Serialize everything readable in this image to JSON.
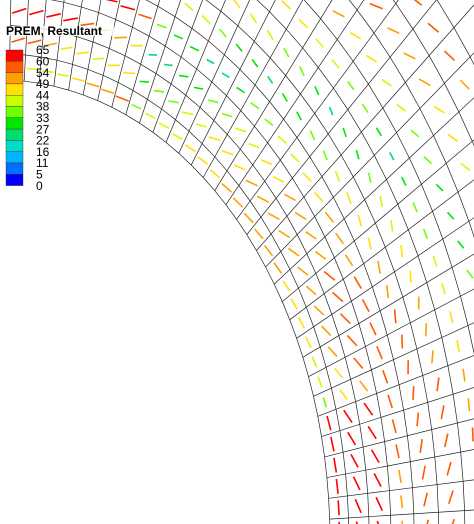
{
  "legend": {
    "title": "PREM, Resultant",
    "levels": [
      {
        "label": 65,
        "color": "#ff0000"
      },
      {
        "label": 60,
        "color": "#ff5a00"
      },
      {
        "label": 54,
        "color": "#ffa000"
      },
      {
        "label": 49,
        "color": "#ffe000"
      },
      {
        "label": 44,
        "color": "#c8ff00"
      },
      {
        "label": 38,
        "color": "#6eff00"
      },
      {
        "label": 33,
        "color": "#00e600"
      },
      {
        "label": 27,
        "color": "#00dc6e"
      },
      {
        "label": 22,
        "color": "#00dcc8"
      },
      {
        "label": 16,
        "color": "#00b4ff"
      },
      {
        "label": 11,
        "color": "#006eff"
      },
      {
        "label": 5,
        "color": "#0000ff"
      },
      {
        "label": 0,
        "color": null
      }
    ]
  }
}
